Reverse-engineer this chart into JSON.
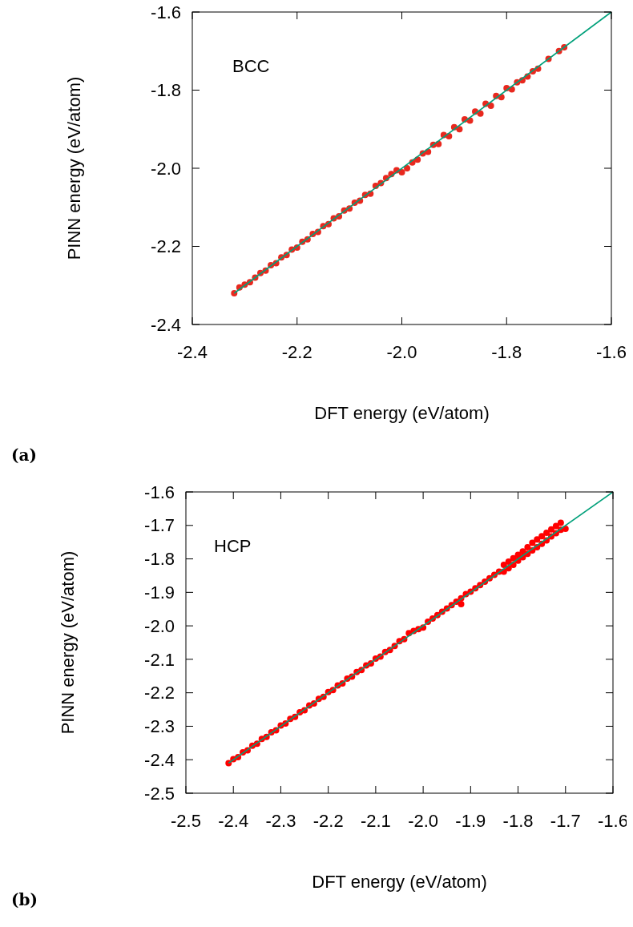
{
  "chart_data": [
    {
      "type": "scatter",
      "xlabel": "DFT energy (eV/atom)",
      "ylabel": "PINN energy (eV/atom)",
      "annotations": [
        "BCC",
        "(a)"
      ],
      "xlim": [
        -2.4,
        -1.6
      ],
      "ylim": [
        -2.4,
        -1.6
      ],
      "xticks": [
        -2.4,
        -2.2,
        {
          "value": -2,
          "label": "-2.0"
        },
        -1.8,
        -1.6
      ],
      "yticks": [
        -2.4,
        -2.2,
        {
          "value": -2,
          "label": "-2.0"
        },
        -1.8,
        -1.6
      ],
      "grid": false,
      "series": [
        {
          "type": "scatter",
          "color": "#e8281e",
          "marker": "circle",
          "x": [
            -2.32,
            -2.31,
            -2.3,
            -2.29,
            -2.28,
            -2.27,
            -2.26,
            -2.25,
            -2.24,
            -2.23,
            -2.22,
            -2.21,
            -2.2,
            -2.19,
            -2.18,
            -2.17,
            -2.16,
            -2.15,
            -2.14,
            -2.13,
            -2.12,
            -2.11,
            -2.1,
            -2.09,
            -2.08,
            -2.07,
            -2.06,
            -2.05,
            -2.04,
            -2.03,
            -2.02,
            -2.01,
            -2,
            -1.99,
            -1.98,
            -1.97,
            -1.96,
            -1.95,
            -1.94,
            -1.93,
            -1.92,
            -1.91,
            -1.9,
            -1.89,
            -1.88,
            -1.87,
            -1.86,
            -1.85,
            -1.84,
            -1.83,
            -1.82,
            -1.81,
            -1.8,
            -1.79,
            -1.78,
            -1.77,
            -1.76,
            -1.75,
            -1.74,
            -1.72,
            -1.7,
            -1.69
          ],
          "values": [
            -2.32,
            -2.305,
            -2.298,
            -2.292,
            -2.28,
            -2.268,
            -2.262,
            -2.248,
            -2.243,
            -2.228,
            -2.222,
            -2.208,
            -2.203,
            -2.188,
            -2.182,
            -2.168,
            -2.163,
            -2.148,
            -2.143,
            -2.128,
            -2.123,
            -2.108,
            -2.103,
            -2.088,
            -2.083,
            -2.068,
            -2.065,
            -2.045,
            -2.038,
            -2.025,
            -2.015,
            -2.005,
            -2.01,
            -2,
            -1.985,
            -1.978,
            -1.962,
            -1.958,
            -1.94,
            -1.938,
            -1.915,
            -1.918,
            -1.895,
            -1.9,
            -1.875,
            -1.878,
            -1.855,
            -1.86,
            -1.835,
            -1.84,
            -1.815,
            -1.818,
            -1.795,
            -1.798,
            -1.78,
            -1.775,
            -1.765,
            -1.752,
            -1.745,
            -1.72,
            -1.7,
            -1.69
          ]
        },
        {
          "type": "line",
          "color": "#00a07a",
          "marker": "none",
          "x": [
            -2.32,
            -1.6
          ],
          "values": [
            -2.32,
            -1.6
          ]
        }
      ]
    },
    {
      "type": "scatter",
      "xlabel": "DFT energy (eV/atom)",
      "ylabel": "PINN energy (eV/atom)",
      "annotations": [
        "HCP",
        "(b)"
      ],
      "xlim": [
        -2.5,
        -1.6
      ],
      "ylim": [
        -2.5,
        -1.6
      ],
      "xticks": [
        -2.5,
        -2.4,
        -2.3,
        -2.2,
        -2.1,
        {
          "value": -2,
          "label": "-2.0"
        },
        -1.9,
        -1.8,
        -1.7,
        -1.6
      ],
      "yticks": [
        -2.5,
        -2.4,
        -2.3,
        -2.2,
        -2.1,
        {
          "value": -2,
          "label": "-2.0"
        },
        -1.9,
        -1.8,
        -1.7,
        -1.6
      ],
      "grid": false,
      "series": [
        {
          "type": "scatter",
          "color": "#ff0000",
          "marker": "circle",
          "x": [
            -2.41,
            -2.4,
            -2.39,
            -2.38,
            -2.37,
            -2.36,
            -2.35,
            -2.34,
            -2.33,
            -2.32,
            -2.31,
            -2.3,
            -2.29,
            -2.28,
            -2.27,
            -2.26,
            -2.25,
            -2.24,
            -2.23,
            -2.22,
            -2.21,
            -2.2,
            -2.19,
            -2.18,
            -2.17,
            -2.16,
            -2.15,
            -2.14,
            -2.13,
            -2.12,
            -2.11,
            -2.1,
            -2.09,
            -2.08,
            -2.07,
            -2.06,
            -2.05,
            -2.04,
            -2.03,
            -2.02,
            -2.01,
            -2,
            -1.99,
            -1.98,
            -1.97,
            -1.96,
            -1.95,
            -1.94,
            -1.93,
            -1.92,
            -1.92,
            -1.91,
            -1.9,
            -1.89,
            -1.88,
            -1.87,
            -1.86,
            -1.85,
            -1.84,
            -1.83,
            -1.83,
            -1.82,
            -1.82,
            -1.81,
            -1.81,
            -1.8,
            -1.8,
            -1.79,
            -1.79,
            -1.78,
            -1.78,
            -1.77,
            -1.77,
            -1.76,
            -1.76,
            -1.75,
            -1.75,
            -1.74,
            -1.74,
            -1.73,
            -1.73,
            -1.72,
            -1.72,
            -1.71,
            -1.71,
            -1.7
          ],
          "values": [
            -2.41,
            -2.398,
            -2.392,
            -2.378,
            -2.372,
            -2.358,
            -2.352,
            -2.338,
            -2.332,
            -2.318,
            -2.312,
            -2.298,
            -2.292,
            -2.278,
            -2.272,
            -2.258,
            -2.252,
            -2.238,
            -2.232,
            -2.218,
            -2.212,
            -2.198,
            -2.192,
            -2.178,
            -2.172,
            -2.158,
            -2.152,
            -2.138,
            -2.132,
            -2.118,
            -2.112,
            -2.098,
            -2.092,
            -2.078,
            -2.072,
            -2.06,
            -2.046,
            -2.04,
            -2.022,
            -2.015,
            -2.01,
            -2.005,
            -1.988,
            -1.978,
            -1.968,
            -1.958,
            -1.948,
            -1.938,
            -1.928,
            -1.918,
            -1.935,
            -1.905,
            -1.898,
            -1.888,
            -1.878,
            -1.868,
            -1.858,
            -1.848,
            -1.838,
            -1.818,
            -1.838,
            -1.808,
            -1.828,
            -1.798,
            -1.818,
            -1.788,
            -1.805,
            -1.778,
            -1.795,
            -1.765,
            -1.785,
            -1.752,
            -1.775,
            -1.742,
            -1.765,
            -1.732,
            -1.755,
            -1.722,
            -1.745,
            -1.712,
            -1.733,
            -1.702,
            -1.723,
            -1.692,
            -1.713,
            -1.71
          ]
        },
        {
          "type": "line",
          "color": "#00a07a",
          "marker": "none",
          "x": [
            -2.41,
            -1.6
          ],
          "values": [
            -2.41,
            -1.6
          ]
        }
      ]
    }
  ]
}
